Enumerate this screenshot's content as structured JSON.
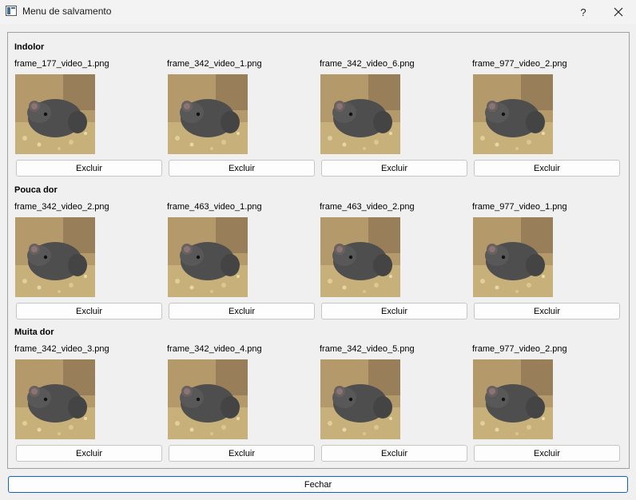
{
  "window": {
    "title": "Menu de salvamento",
    "help_label": "?",
    "close_icon": "close-icon"
  },
  "sections": [
    {
      "title": "Indolor",
      "items": [
        {
          "filename": "frame_177_video_1.png",
          "delete_label": "Excluir"
        },
        {
          "filename": "frame_342_video_1.png",
          "delete_label": "Excluir"
        },
        {
          "filename": "frame_342_video_6.png",
          "delete_label": "Excluir"
        },
        {
          "filename": "frame_977_video_2.png",
          "delete_label": "Excluir"
        }
      ]
    },
    {
      "title": "Pouca dor",
      "items": [
        {
          "filename": "frame_342_video_2.png",
          "delete_label": "Excluir"
        },
        {
          "filename": "frame_463_video_1.png",
          "delete_label": "Excluir"
        },
        {
          "filename": "frame_463_video_2.png",
          "delete_label": "Excluir"
        },
        {
          "filename": "frame_977_video_1.png",
          "delete_label": "Excluir"
        }
      ]
    },
    {
      "title": "Muita dor",
      "items": [
        {
          "filename": "frame_342_video_3.png",
          "delete_label": "Excluir"
        },
        {
          "filename": "frame_342_video_4.png",
          "delete_label": "Excluir"
        },
        {
          "filename": "frame_342_video_5.png",
          "delete_label": "Excluir"
        },
        {
          "filename": "frame_977_video_2.png",
          "delete_label": "Excluir"
        }
      ]
    }
  ],
  "footer": {
    "close_label": "Fechar"
  },
  "colors": {
    "accent": "#0a64c9",
    "background": "#f0f0f0"
  }
}
